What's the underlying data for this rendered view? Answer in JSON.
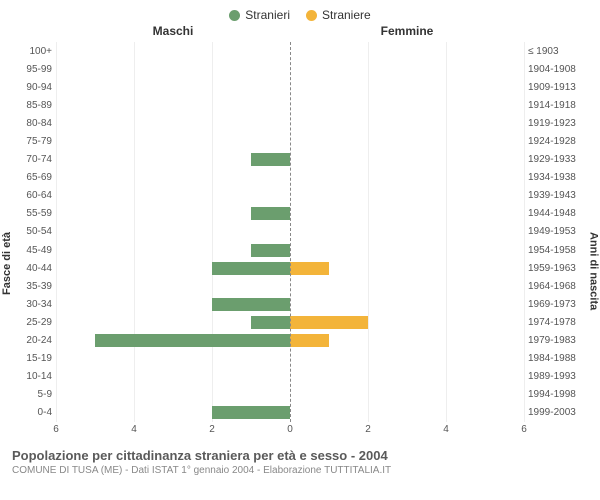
{
  "legend": {
    "male": "Stranieri",
    "female": "Straniere",
    "male_color": "#6b9e6e",
    "female_color": "#f3b43a"
  },
  "headers": {
    "left": "Maschi",
    "right": "Femmine"
  },
  "y_left_title": "Fasce di età",
  "y_right_title": "Anni di nascita",
  "x_axis": {
    "max": 6,
    "ticks": [
      6,
      4,
      2,
      0,
      2,
      4,
      6
    ]
  },
  "grid_color": "#eeeeee",
  "center_line_color": "#888888",
  "background_color": "#ffffff",
  "rows": [
    {
      "age": "100+",
      "birth": "≤ 1903",
      "m": 0,
      "f": 0
    },
    {
      "age": "95-99",
      "birth": "1904-1908",
      "m": 0,
      "f": 0
    },
    {
      "age": "90-94",
      "birth": "1909-1913",
      "m": 0,
      "f": 0
    },
    {
      "age": "85-89",
      "birth": "1914-1918",
      "m": 0,
      "f": 0
    },
    {
      "age": "80-84",
      "birth": "1919-1923",
      "m": 0,
      "f": 0
    },
    {
      "age": "75-79",
      "birth": "1924-1928",
      "m": 0,
      "f": 0
    },
    {
      "age": "70-74",
      "birth": "1929-1933",
      "m": 1,
      "f": 0
    },
    {
      "age": "65-69",
      "birth": "1934-1938",
      "m": 0,
      "f": 0
    },
    {
      "age": "60-64",
      "birth": "1939-1943",
      "m": 0,
      "f": 0
    },
    {
      "age": "55-59",
      "birth": "1944-1948",
      "m": 1,
      "f": 0
    },
    {
      "age": "50-54",
      "birth": "1949-1953",
      "m": 0,
      "f": 0
    },
    {
      "age": "45-49",
      "birth": "1954-1958",
      "m": 1,
      "f": 0
    },
    {
      "age": "40-44",
      "birth": "1959-1963",
      "m": 2,
      "f": 1
    },
    {
      "age": "35-39",
      "birth": "1964-1968",
      "m": 0,
      "f": 0
    },
    {
      "age": "30-34",
      "birth": "1969-1973",
      "m": 2,
      "f": 0
    },
    {
      "age": "25-29",
      "birth": "1974-1978",
      "m": 1,
      "f": 2
    },
    {
      "age": "20-24",
      "birth": "1979-1983",
      "m": 5,
      "f": 1
    },
    {
      "age": "15-19",
      "birth": "1984-1988",
      "m": 0,
      "f": 0
    },
    {
      "age": "10-14",
      "birth": "1989-1993",
      "m": 0,
      "f": 0
    },
    {
      "age": "5-9",
      "birth": "1994-1998",
      "m": 0,
      "f": 0
    },
    {
      "age": "0-4",
      "birth": "1999-2003",
      "m": 2,
      "f": 0
    }
  ],
  "footer": {
    "title": "Popolazione per cittadinanza straniera per età e sesso - 2004",
    "subtitle": "COMUNE DI TUSA (ME) - Dati ISTAT 1° gennaio 2004 - Elaborazione TUTTITALIA.IT"
  }
}
